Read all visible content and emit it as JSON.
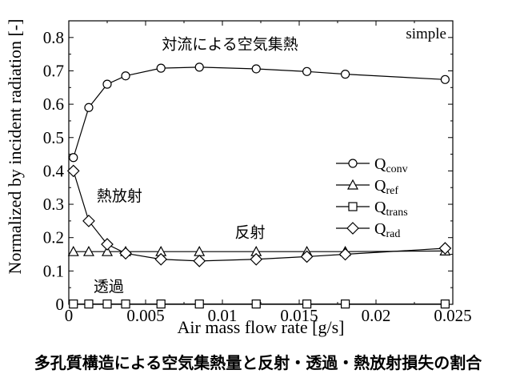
{
  "caption": "多孔質構造による空気集熱量と反射・透過・熱放射損失の割合",
  "chart_data": {
    "type": "line",
    "xlabel": "Air mass flow rate [g/s]",
    "ylabel": "Normalized by incident radiation [-]",
    "xlim": [
      0,
      0.025
    ],
    "ylim": [
      0,
      0.85
    ],
    "x_ticks": [
      "0",
      "0.005",
      "0.01",
      "0.015",
      "0.02",
      "0.025"
    ],
    "y_ticks": [
      "0",
      "0.1",
      "0.2",
      "0.3",
      "0.4",
      "0.5",
      "0.6",
      "0.7",
      "0.8"
    ],
    "x_tick_values": [
      0,
      0.005,
      0.01,
      0.015,
      0.02,
      0.025
    ],
    "y_tick_values": [
      0,
      0.1,
      0.2,
      0.3,
      0.4,
      0.5,
      0.6,
      0.7,
      0.8
    ],
    "grid": false,
    "legend_position": "center-right",
    "corner_label": "simple",
    "series": [
      {
        "name": "Q",
        "subscript": "conv",
        "marker": "circle",
        "x": [
          0.0003,
          0.0013,
          0.0025,
          0.0037,
          0.006,
          0.0085,
          0.0122,
          0.0155,
          0.018,
          0.0245
        ],
        "y": [
          0.44,
          0.59,
          0.66,
          0.685,
          0.708,
          0.711,
          0.706,
          0.698,
          0.69,
          0.674
        ]
      },
      {
        "name": "Q",
        "subscript": "ref",
        "marker": "triangle",
        "x": [
          0.0003,
          0.0013,
          0.0025,
          0.0037,
          0.006,
          0.0085,
          0.0122,
          0.0155,
          0.018,
          0.0245
        ],
        "y": [
          0.158,
          0.158,
          0.158,
          0.158,
          0.158,
          0.158,
          0.158,
          0.158,
          0.158,
          0.16
        ]
      },
      {
        "name": "Q",
        "subscript": "trans",
        "marker": "square",
        "x": [
          0.0003,
          0.0013,
          0.0025,
          0.0037,
          0.006,
          0.0085,
          0.0122,
          0.0155,
          0.018,
          0.0245
        ],
        "y": [
          0.001,
          0.001,
          0.001,
          0.001,
          0.001,
          0.001,
          0.001,
          0.001,
          0.001,
          0.001
        ]
      },
      {
        "name": "Q",
        "subscript": "rad",
        "marker": "diamond",
        "x": [
          0.0003,
          0.0013,
          0.0025,
          0.0037,
          0.006,
          0.0085,
          0.0122,
          0.0155,
          0.018,
          0.0245
        ],
        "y": [
          0.4,
          0.25,
          0.18,
          0.153,
          0.135,
          0.13,
          0.135,
          0.143,
          0.15,
          0.168
        ]
      }
    ],
    "annotations": [
      {
        "text": "対流による空気集熱",
        "x": 0.0105,
        "y": 0.765
      },
      {
        "text": "熱放射",
        "x": 0.0033,
        "y": 0.31
      },
      {
        "text": "反射",
        "x": 0.0118,
        "y": 0.2
      },
      {
        "text": "透過",
        "x": 0.0026,
        "y": 0.038
      }
    ]
  }
}
